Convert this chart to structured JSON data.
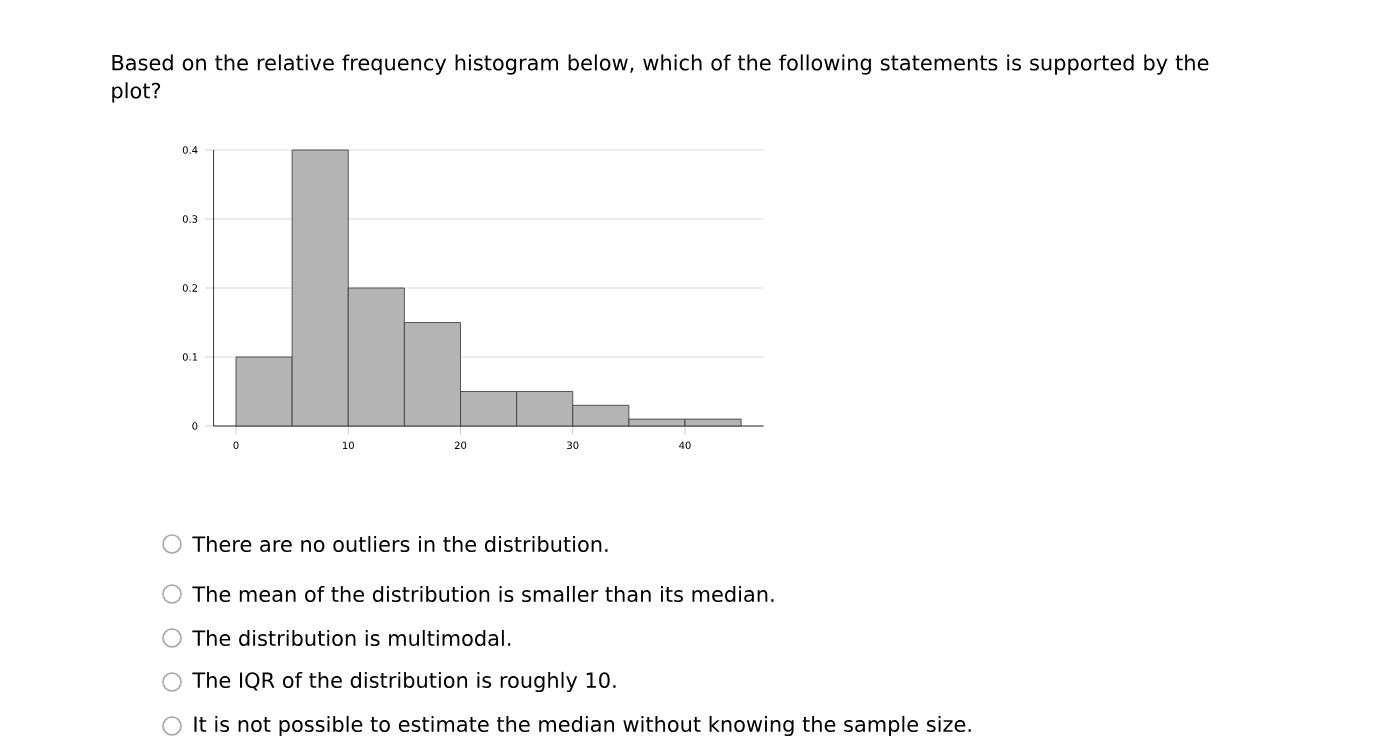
{
  "chart_data": {
    "type": "histogram",
    "title": "Based on the relative frequency histogram below, which of the following statements is supported by the plot?",
    "bins": [
      0,
      5,
      10,
      15,
      20,
      25,
      30,
      35,
      40,
      45
    ],
    "values": [
      0.1,
      0.4,
      0.2,
      0.15,
      0.05,
      0.05,
      0.03,
      0.01,
      0.01
    ],
    "color": "#b4b4b4",
    "xlim": [
      -2,
      47
    ],
    "ylim": [
      0,
      0.4
    ],
    "xticks": [
      0,
      10,
      20,
      30,
      40
    ],
    "yticks": [
      0,
      0.1,
      0.2,
      0.3,
      0.4
    ],
    "grid": "y",
    "annotations": [
      "There are no outliers in the distribution.",
      "The mean of the distribution is smaller than its median.",
      "The distribution is multimodal.",
      "The IQR of the distribution is roughly 10.",
      "It is not possible to estimate the median without knowing the sample size."
    ]
  }
}
